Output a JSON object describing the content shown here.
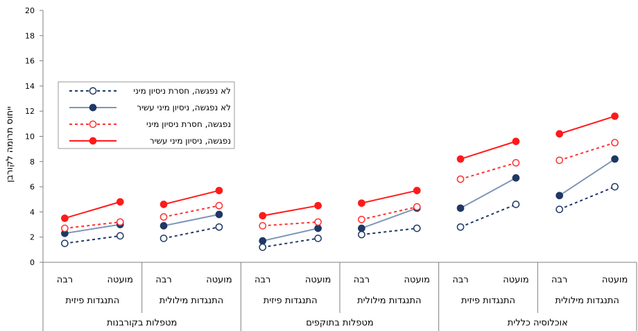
{
  "chart_data": {
    "type": "line",
    "ylabel": "ייחוס תרומה לקורבן",
    "ylim": [
      0,
      20
    ],
    "yticks": [
      "0",
      "2",
      "4",
      "6",
      "8",
      "10",
      "12",
      "14",
      "16",
      "18",
      "20"
    ],
    "grid": false,
    "legend_position": "top-left",
    "panels": [
      {
        "label": "מטפלות בקורבנות",
        "sub": [
          {
            "label": "התנגדות פיזית",
            "points": [
              "רבה",
              "מועטה"
            ]
          },
          {
            "label": "התנגדות מילולית",
            "points": [
              "רבה",
              "מועטה"
            ]
          }
        ]
      },
      {
        "label": "מטפלות בתוקפים",
        "sub": [
          {
            "label": "התנגדות פיזית",
            "points": [
              "רבה",
              "מועטה"
            ]
          },
          {
            "label": "התנגדות מילולית",
            "points": [
              "רבה",
              "מועטה"
            ]
          }
        ]
      },
      {
        "label": "אוכלוסיה כללית",
        "sub": [
          {
            "label": "התנגדות פיזית",
            "points": [
              "רבה",
              "מועטה"
            ]
          },
          {
            "label": "התנגדות מילולית",
            "points": [
              "רבה",
              "מועטה"
            ]
          }
        ]
      }
    ],
    "series": [
      {
        "name": "לא נפגשה, חסרת ניסיון מיני",
        "color": "#1f3864",
        "dashed": true,
        "filled": false,
        "values": [
          [
            1.5,
            2.1
          ],
          [
            1.9,
            2.8
          ],
          [
            1.2,
            1.9
          ],
          [
            2.2,
            2.7
          ],
          [
            2.8,
            4.6
          ],
          [
            4.2,
            6.0
          ]
        ]
      },
      {
        "name": "לא נפגשה, ניסיון מיני עשיר",
        "color": "#1f3864",
        "line_color": "#7f95b8",
        "dashed": false,
        "filled": true,
        "values": [
          [
            2.3,
            3.0
          ],
          [
            2.9,
            3.8
          ],
          [
            1.7,
            2.7
          ],
          [
            2.7,
            4.3
          ],
          [
            4.3,
            6.7
          ],
          [
            5.3,
            8.2
          ]
        ]
      },
      {
        "name": "נפגשה, חסרת ניסיון מיני",
        "color": "#ff3030",
        "dashed": true,
        "filled": false,
        "values": [
          [
            2.7,
            3.2
          ],
          [
            3.6,
            4.5
          ],
          [
            2.9,
            3.2
          ],
          [
            3.4,
            4.4
          ],
          [
            6.6,
            7.9
          ],
          [
            8.1,
            9.5
          ]
        ]
      },
      {
        "name": "נפגשה, ניסיון מיני עשיר",
        "color": "#ff1a1a",
        "dashed": false,
        "filled": true,
        "values": [
          [
            3.5,
            4.8
          ],
          [
            4.6,
            5.7
          ],
          [
            3.7,
            4.5
          ],
          [
            4.7,
            5.7
          ],
          [
            8.2,
            9.6
          ],
          [
            10.2,
            11.6
          ]
        ]
      }
    ]
  }
}
